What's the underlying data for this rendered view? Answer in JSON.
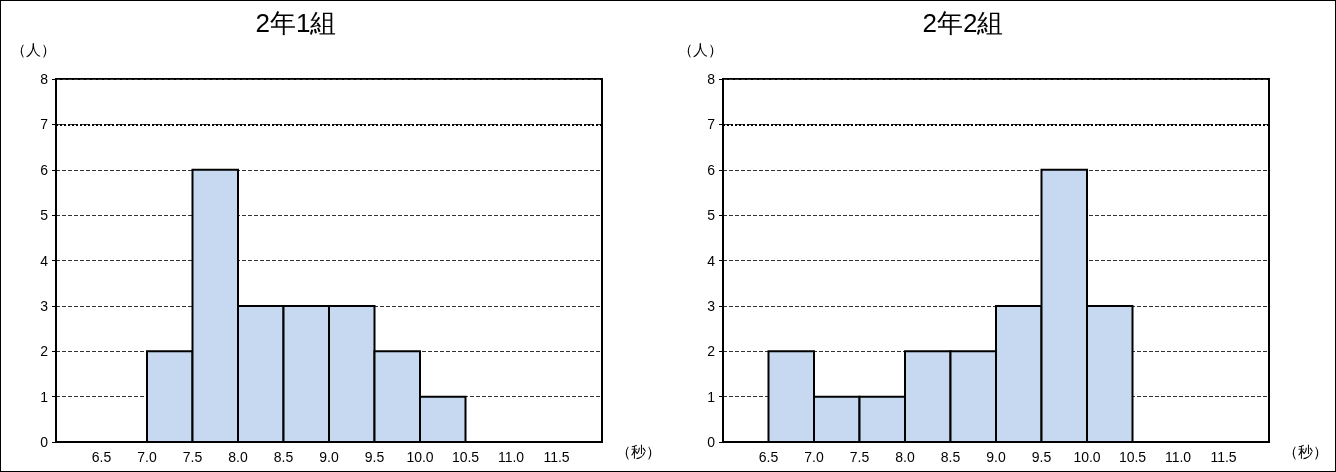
{
  "chart_data": [
    {
      "type": "histogram",
      "title": "2年1組",
      "xlabel": "（秒）",
      "ylabel": "（人）",
      "bins": [
        7.0,
        7.5,
        8.0,
        8.5,
        9.0,
        9.5,
        10.0,
        10.5
      ],
      "values": [
        2,
        6,
        3,
        3,
        3,
        2,
        1
      ],
      "color": "#c6d9f1",
      "xlim": [
        6,
        12
      ],
      "xticks": [
        6.5,
        {
          "value": 7,
          "label": "7.0"
        },
        7.5,
        {
          "value": 8,
          "label": "8.0"
        },
        8.5,
        {
          "value": 9,
          "label": "9.0"
        },
        9.5,
        {
          "value": 10,
          "label": "10.0"
        },
        10.5,
        {
          "value": 11,
          "label": "11.0"
        },
        11.5
      ],
      "ylim": [
        0,
        8
      ],
      "yticks": [
        0,
        1,
        2,
        3,
        4,
        5,
        6,
        7,
        8
      ],
      "grid": "y",
      "ref_lines": [
        {
          "axis": "y",
          "value": 7,
          "line_style": "dotted",
          "color": "#000000"
        }
      ]
    },
    {
      "type": "histogram",
      "title": "2年2組",
      "xlabel": "（秒）",
      "ylabel": "（人）",
      "bins": [
        6.5,
        7.0,
        7.5,
        8.0,
        8.5,
        9.0,
        9.5,
        10.0,
        10.5
      ],
      "values": [
        2,
        1,
        1,
        2,
        2,
        3,
        6,
        3
      ],
      "color": "#c6d9f1",
      "xlim": [
        6,
        12
      ],
      "xticks": [
        6.5,
        {
          "value": 7,
          "label": "7.0"
        },
        7.5,
        {
          "value": 8,
          "label": "8.0"
        },
        8.5,
        {
          "value": 9,
          "label": "9.0"
        },
        9.5,
        {
          "value": 10,
          "label": "10.0"
        },
        10.5,
        {
          "value": 11,
          "label": "11.0"
        },
        11.5
      ],
      "ylim": [
        0,
        8
      ],
      "yticks": [
        0,
        1,
        2,
        3,
        4,
        5,
        6,
        7,
        8
      ],
      "grid": "y",
      "ref_lines": [
        {
          "axis": "y",
          "value": 7,
          "line_style": "dotted",
          "color": "#000000"
        }
      ]
    }
  ]
}
